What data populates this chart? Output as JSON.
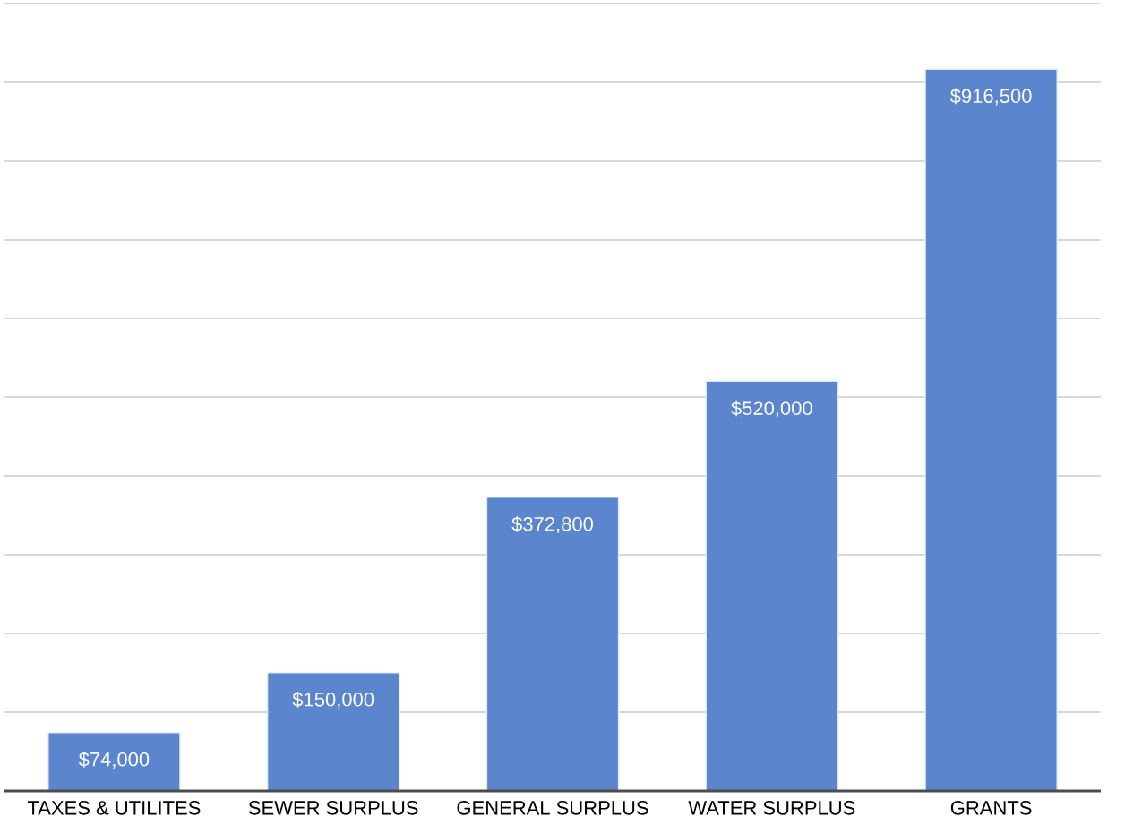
{
  "chart_data": {
    "type": "bar",
    "categories": [
      "TAXES & UTILITES",
      "SEWER SURPLUS",
      "GENERAL SURPLUS",
      "WATER SURPLUS",
      "GRANTS"
    ],
    "values": [
      74000,
      150000,
      372800,
      520000,
      916500
    ],
    "value_labels": [
      "$74,000",
      "$150,000",
      "$372,800",
      "$520,000",
      "$916,500"
    ],
    "color": "#5b85cc",
    "ylim": [
      0,
      1000000
    ],
    "yticks": [
      {
        "value": 0,
        "label": null
      },
      {
        "value": 100000,
        "label": null
      },
      {
        "value": 200000,
        "label": null
      },
      {
        "value": 300000,
        "label": null
      },
      {
        "value": 400000,
        "label": null
      },
      {
        "value": 500000,
        "label": null
      },
      {
        "value": 600000,
        "label": null
      },
      {
        "value": 700000,
        "label": null
      },
      {
        "value": 800000,
        "label": null
      },
      {
        "value": 900000,
        "label": null
      },
      {
        "value": 1000000,
        "label": null
      }
    ],
    "grid": "y",
    "tick_labels": "x"
  }
}
